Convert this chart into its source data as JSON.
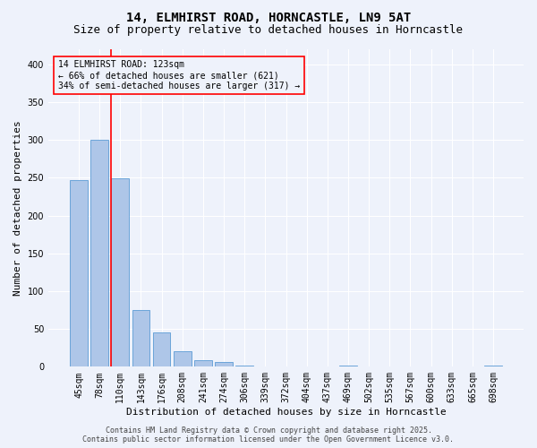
{
  "title1": "14, ELMHIRST ROAD, HORNCASTLE, LN9 5AT",
  "title2": "Size of property relative to detached houses in Horncastle",
  "xlabel": "Distribution of detached houses by size in Horncastle",
  "ylabel": "Number of detached properties",
  "categories": [
    "45sqm",
    "78sqm",
    "110sqm",
    "143sqm",
    "176sqm",
    "208sqm",
    "241sqm",
    "274sqm",
    "306sqm",
    "339sqm",
    "372sqm",
    "404sqm",
    "437sqm",
    "469sqm",
    "502sqm",
    "535sqm",
    "567sqm",
    "600sqm",
    "633sqm",
    "665sqm",
    "698sqm"
  ],
  "values": [
    247,
    300,
    249,
    75,
    46,
    21,
    9,
    6,
    2,
    0,
    0,
    0,
    0,
    1,
    0,
    0,
    0,
    0,
    0,
    0,
    2
  ],
  "bar_color": "#aec6e8",
  "bar_edge_color": "#5b9bd5",
  "vline_color": "red",
  "annotation_box_text": "14 ELMHIRST ROAD: 123sqm\n← 66% of detached houses are smaller (621)\n34% of semi-detached houses are larger (317) →",
  "annotation_box_color": "red",
  "footer1": "Contains HM Land Registry data © Crown copyright and database right 2025.",
  "footer2": "Contains public sector information licensed under the Open Government Licence v3.0.",
  "ylim": [
    0,
    420
  ],
  "yticks": [
    0,
    50,
    100,
    150,
    200,
    250,
    300,
    350,
    400
  ],
  "background_color": "#eef2fb",
  "grid_color": "#ffffff",
  "title_fontsize": 10,
  "subtitle_fontsize": 9,
  "axis_label_fontsize": 8,
  "tick_fontsize": 7,
  "annotation_fontsize": 7,
  "footer_fontsize": 6
}
